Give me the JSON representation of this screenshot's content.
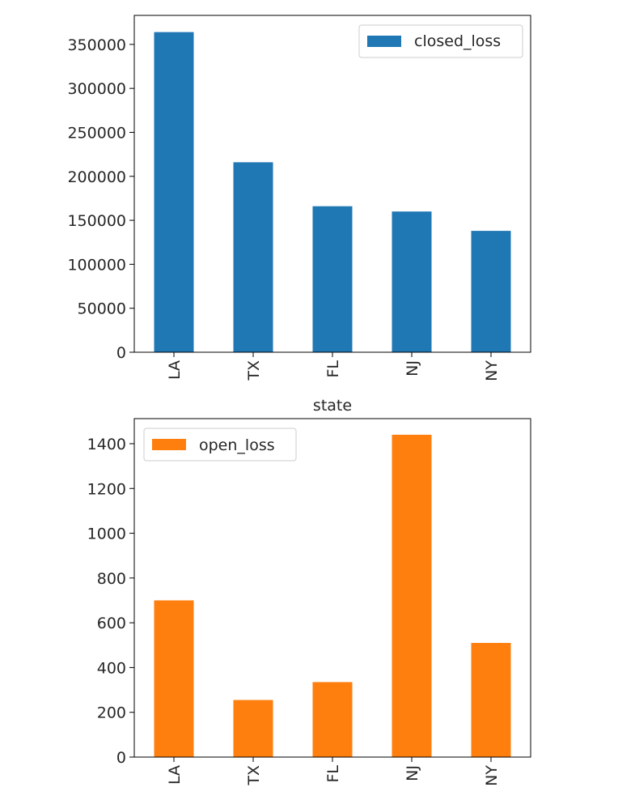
{
  "chart_data": [
    {
      "type": "bar",
      "categories": [
        "LA",
        "TX",
        "FL",
        "NJ",
        "NY"
      ],
      "series": [
        {
          "name": "closed_loss",
          "values": [
            364000,
            216000,
            166000,
            160000,
            138000
          ],
          "color": "#1f77b4"
        }
      ],
      "title": "",
      "xlabel": "state",
      "ylabel": "",
      "ylim": [
        0,
        383000
      ],
      "yticks": [
        0,
        50000,
        100000,
        150000,
        200000,
        250000,
        300000,
        350000
      ],
      "legend": "upper right",
      "grid": false
    },
    {
      "type": "bar",
      "categories": [
        "LA",
        "TX",
        "FL",
        "NJ",
        "NY"
      ],
      "series": [
        {
          "name": "open_loss",
          "values": [
            700,
            255,
            335,
            1440,
            510
          ],
          "color": "#ff7f0e"
        }
      ],
      "title": "",
      "xlabel": "",
      "ylabel": "",
      "ylim": [
        0,
        1512
      ],
      "yticks": [
        0,
        200,
        400,
        600,
        800,
        1000,
        1200,
        1400
      ],
      "legend": "upper left",
      "grid": false
    }
  ]
}
